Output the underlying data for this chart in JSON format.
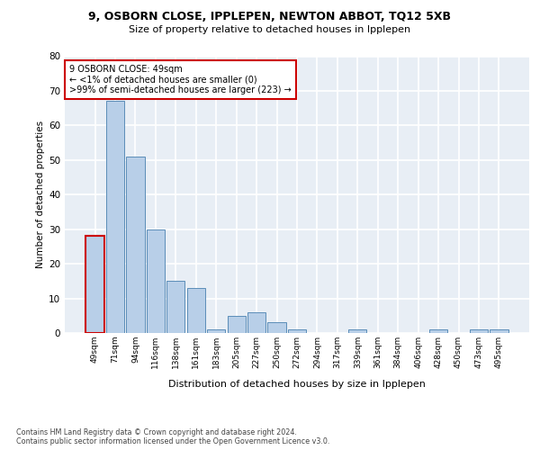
{
  "title1": "9, OSBORN CLOSE, IPPLEPEN, NEWTON ABBOT, TQ12 5XB",
  "title2": "Size of property relative to detached houses in Ipplepen",
  "xlabel": "Distribution of detached houses by size in Ipplepen",
  "ylabel": "Number of detached properties",
  "categories": [
    "49sqm",
    "71sqm",
    "94sqm",
    "116sqm",
    "138sqm",
    "161sqm",
    "183sqm",
    "205sqm",
    "227sqm",
    "250sqm",
    "272sqm",
    "294sqm",
    "317sqm",
    "339sqm",
    "361sqm",
    "384sqm",
    "406sqm",
    "428sqm",
    "450sqm",
    "473sqm",
    "495sqm"
  ],
  "values": [
    28,
    67,
    51,
    30,
    15,
    13,
    1,
    5,
    6,
    3,
    1,
    0,
    0,
    1,
    0,
    0,
    0,
    1,
    0,
    1,
    1
  ],
  "bar_color": "#b8cfe8",
  "bar_edge_color": "#5b8db8",
  "highlight_bar_index": 0,
  "highlight_bar_edge_color": "#cc0000",
  "annotation_box_text": "9 OSBORN CLOSE: 49sqm\n← <1% of detached houses are smaller (0)\n>99% of semi-detached houses are larger (223) →",
  "annotation_box_edge_color": "#cc0000",
  "ylim": [
    0,
    80
  ],
  "yticks": [
    0,
    10,
    20,
    30,
    40,
    50,
    60,
    70,
    80
  ],
  "bg_color": "#e8eef5",
  "grid_color": "white",
  "footer": "Contains HM Land Registry data © Crown copyright and database right 2024.\nContains public sector information licensed under the Open Government Licence v3.0."
}
